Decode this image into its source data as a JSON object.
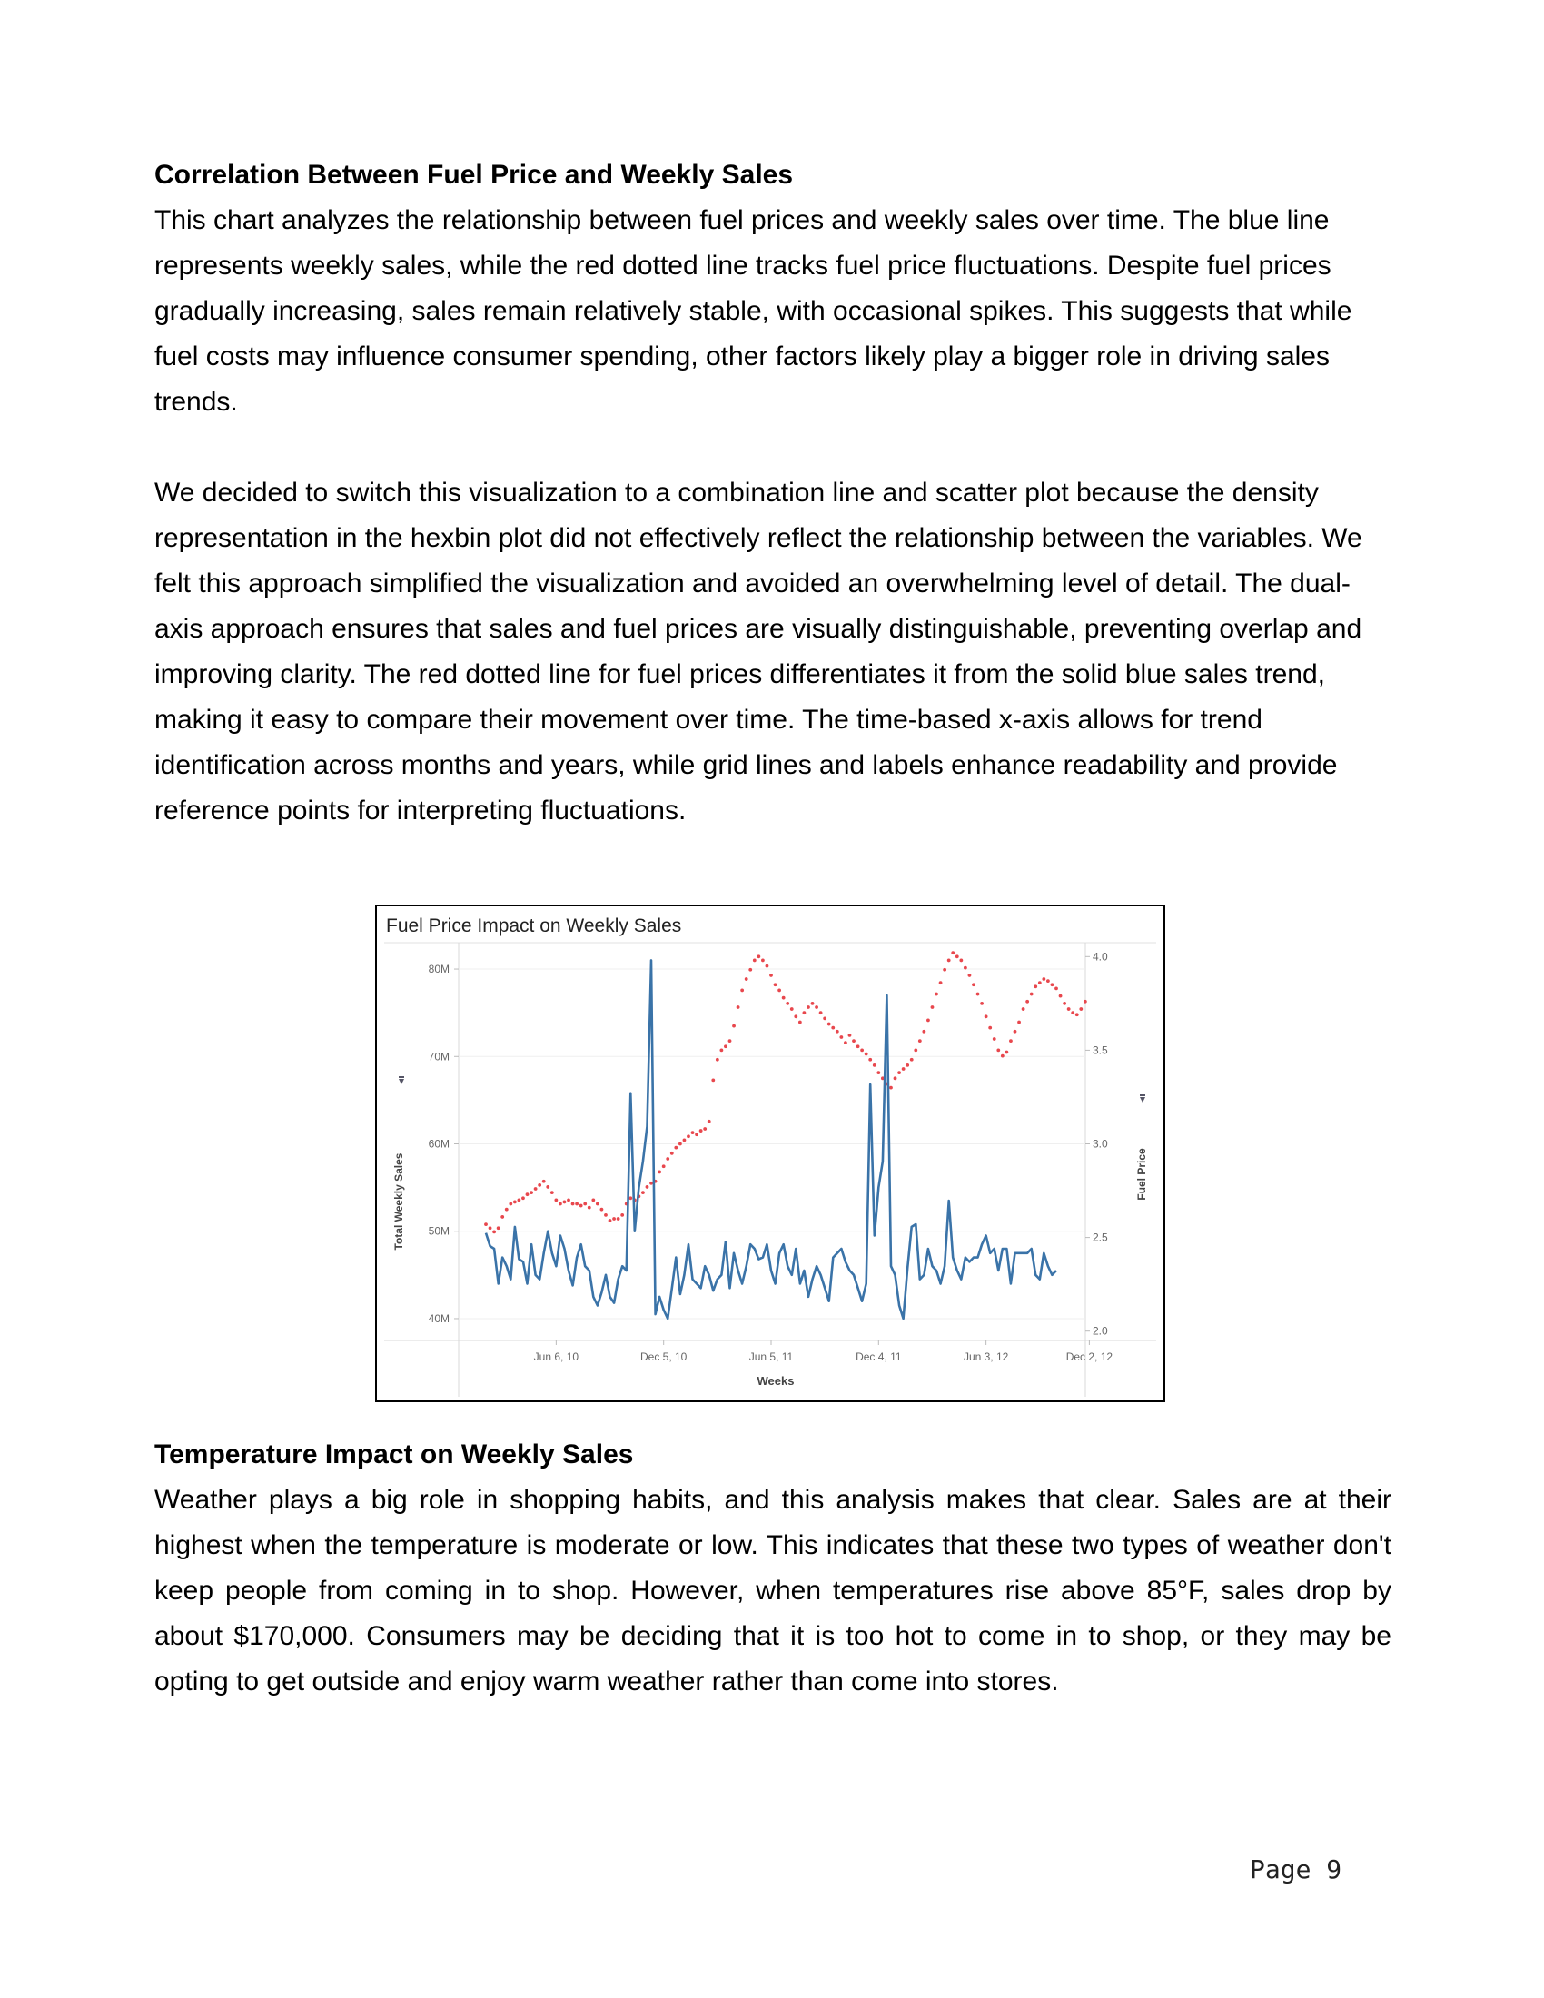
{
  "section1": {
    "heading": "Correlation Between Fuel Price and Weekly Sales",
    "paragraph1": "This chart analyzes the relationship between fuel prices and weekly sales over time. The blue line represents weekly sales, while the red dotted line tracks fuel price fluctuations. Despite fuel prices gradually increasing, sales remain relatively stable, with occasional spikes. This suggests that while fuel costs may influence consumer spending, other factors likely play a bigger role in driving sales trends.",
    "paragraph2": "We decided to switch this visualization to a combination line and scatter plot because the density representation in the hexbin plot did not effectively reflect the relationship between the variables. We felt this approach simplified the visualization and avoided an overwhelming level of detail. The dual-axis approach ensures that sales and fuel prices are visually distinguishable, preventing overlap and improving clarity. The red dotted line for fuel prices differentiates it from the solid blue sales trend, making it easy to compare their movement over time. The time-based x-axis allows for trend identification across months and years, while grid lines and labels enhance readability and provide reference points for interpreting fluctuations."
  },
  "chart_data": {
    "type": "line",
    "title": "Fuel Price Impact on Weekly Sales",
    "xlabel": "Weeks",
    "ylabel_left": "Total Weekly Sales",
    "ylabel_right": "Fuel Price",
    "x_tick_labels": [
      "Jun 6, 10",
      "Dec 5, 10",
      "Jun 5, 11",
      "Dec 4, 11",
      "Jun 3, 12",
      "Dec 2, 12"
    ],
    "x_tick_index": [
      17,
      43,
      69,
      95,
      121,
      146
    ],
    "y_left_ticks": [
      "40M",
      "50M",
      "60M",
      "70M",
      "80M"
    ],
    "y_left_tick_values": [
      40,
      50,
      60,
      70,
      80
    ],
    "y_left_range": [
      37.5,
      82.5
    ],
    "y_right_ticks": [
      "2.0",
      "2.5",
      "3.0",
      "3.5",
      "4.0"
    ],
    "y_right_tick_values": [
      2.0,
      2.5,
      3.0,
      3.5,
      4.0
    ],
    "y_right_range": [
      1.95,
      4.05
    ],
    "grid": true,
    "series": [
      {
        "name": "Total Weekly Sales",
        "style": "line",
        "color": "#3a73a8",
        "axis": "left",
        "values_millions": [
          49.8,
          48.3,
          48.0,
          44.0,
          47.0,
          46.0,
          44.5,
          50.5,
          46.8,
          46.5,
          44.0,
          48.5,
          45.0,
          44.5,
          47.5,
          50.0,
          47.5,
          46.0,
          49.5,
          48.0,
          45.5,
          43.8,
          47.0,
          48.5,
          46.0,
          45.5,
          42.5,
          41.5,
          43.0,
          45.0,
          42.5,
          41.8,
          44.5,
          46.0,
          45.5,
          65.8,
          50.0,
          55.0,
          58.0,
          62.0,
          81.0,
          40.5,
          42.5,
          41.0,
          40.0,
          43.5,
          47.0,
          42.8,
          45.0,
          48.5,
          44.5,
          44.0,
          43.5,
          46.0,
          45.0,
          43.2,
          44.5,
          45.0,
          48.8,
          43.5,
          47.5,
          45.5,
          44.0,
          46.0,
          48.5,
          48.0,
          46.8,
          47.0,
          48.5,
          45.5,
          44.0,
          47.5,
          48.5,
          46.0,
          45.0,
          48.0,
          44.0,
          45.5,
          42.5,
          44.5,
          46.0,
          45.0,
          43.5,
          42.0,
          47.0,
          47.5,
          48.0,
          46.5,
          45.5,
          45.0,
          43.5,
          42.0,
          44.0,
          66.8,
          49.5,
          55.0,
          58.0,
          77.0,
          46.0,
          45.0,
          41.5,
          40.0,
          45.8,
          50.5,
          50.8,
          44.5,
          45.0,
          48.0,
          46.0,
          45.5,
          44.0,
          46.0,
          53.5,
          47.0,
          45.5,
          44.5,
          47.0,
          46.5,
          47.0,
          47.0,
          48.5,
          49.5,
          47.5,
          48.0,
          45.5,
          48.0,
          48.0,
          44.0,
          47.5,
          47.5,
          47.5,
          47.5,
          48.0,
          45.0,
          44.5,
          47.5,
          46.0,
          45.0,
          45.5
        ]
      },
      {
        "name": "Fuel Price",
        "style": "dotted",
        "color": "#e8474d",
        "axis": "right",
        "values": [
          2.57,
          2.55,
          2.53,
          2.55,
          2.61,
          2.65,
          2.68,
          2.69,
          2.7,
          2.71,
          2.73,
          2.74,
          2.76,
          2.78,
          2.8,
          2.77,
          2.74,
          2.7,
          2.68,
          2.69,
          2.7,
          2.68,
          2.68,
          2.67,
          2.68,
          2.66,
          2.7,
          2.68,
          2.65,
          2.62,
          2.59,
          2.6,
          2.6,
          2.62,
          2.68,
          2.71,
          2.7,
          2.72,
          2.74,
          2.77,
          2.79,
          2.8,
          2.85,
          2.88,
          2.92,
          2.95,
          2.98,
          3.0,
          3.02,
          3.04,
          3.06,
          3.05,
          3.07,
          3.08,
          3.12,
          3.34,
          3.45,
          3.5,
          3.52,
          3.55,
          3.63,
          3.73,
          3.82,
          3.88,
          3.93,
          3.98,
          4.0,
          3.98,
          3.95,
          3.9,
          3.85,
          3.82,
          3.78,
          3.75,
          3.72,
          3.68,
          3.65,
          3.7,
          3.73,
          3.75,
          3.73,
          3.7,
          3.67,
          3.64,
          3.62,
          3.6,
          3.57,
          3.54,
          3.58,
          3.55,
          3.52,
          3.5,
          3.48,
          3.45,
          3.42,
          3.38,
          3.35,
          3.32,
          3.3,
          3.35,
          3.38,
          3.4,
          3.42,
          3.45,
          3.5,
          3.55,
          3.6,
          3.66,
          3.73,
          3.8,
          3.86,
          3.93,
          3.98,
          4.02,
          4.0,
          3.98,
          3.94,
          3.9,
          3.85,
          3.8,
          3.75,
          3.68,
          3.62,
          3.56,
          3.5,
          3.47,
          3.49,
          3.55,
          3.6,
          3.65,
          3.72,
          3.76,
          3.8,
          3.84,
          3.86,
          3.88,
          3.87,
          3.85,
          3.83,
          3.79,
          3.75,
          3.72,
          3.7,
          3.69,
          3.72,
          3.76
        ]
      }
    ]
  },
  "section2": {
    "heading": "Temperature Impact on Weekly Sales",
    "paragraph": "Weather plays a big role in shopping habits, and this analysis makes that clear. Sales are at their highest when the temperature is moderate or low. This indicates that these two types of weather don't keep people from coming in to shop. However, when temperatures rise above 85°F, sales drop by about $170,000. Consumers may be deciding that it is too hot to come in to shop, or they may be opting to get outside and enjoy warm weather rather than come into stores."
  },
  "footer": {
    "page_label": "Page  9"
  }
}
